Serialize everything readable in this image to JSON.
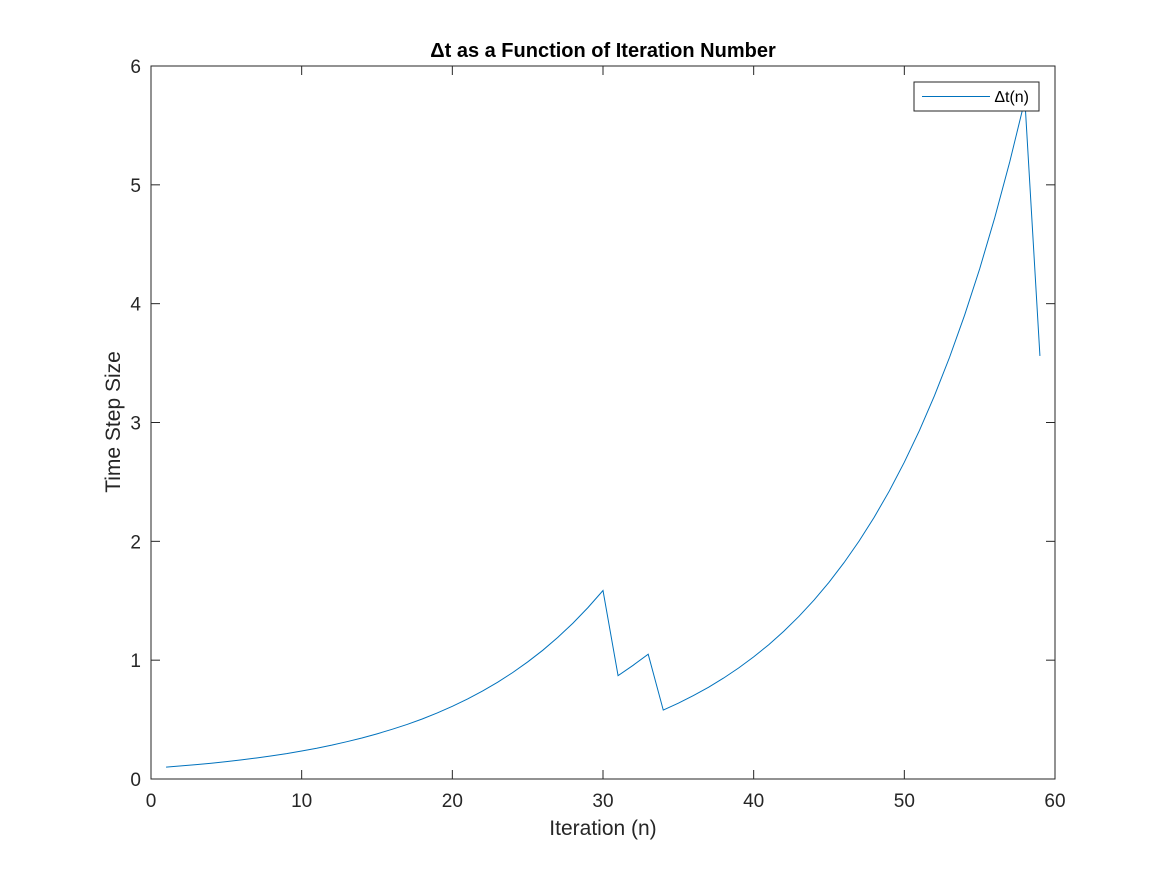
{
  "chart_data": {
    "type": "line",
    "title": "Δt as a Function of Iteration Number",
    "xlabel": "Iteration (n)",
    "ylabel": "Time Step Size",
    "xlim": [
      0,
      60
    ],
    "ylim": [
      0,
      6
    ],
    "xticks": [
      0,
      10,
      20,
      30,
      40,
      50,
      60
    ],
    "yticks": [
      0,
      1,
      2,
      3,
      4,
      5,
      6
    ],
    "grid": false,
    "legend": {
      "location": "top-right",
      "entries": [
        "Δt(n)"
      ]
    },
    "series": [
      {
        "name": "Δt(n)",
        "color": "#0072BD",
        "x": [
          1,
          2,
          3,
          4,
          5,
          6,
          7,
          8,
          9,
          10,
          11,
          12,
          13,
          14,
          15,
          16,
          17,
          18,
          19,
          20,
          21,
          22,
          23,
          24,
          25,
          26,
          27,
          28,
          29,
          30,
          31,
          32,
          33,
          34,
          35,
          36,
          37,
          38,
          39,
          40,
          41,
          42,
          43,
          44,
          45,
          46,
          47,
          48,
          49,
          50,
          51,
          52,
          53,
          54,
          55,
          56,
          57,
          58,
          59
        ],
        "y": [
          0.1,
          0.11,
          0.121,
          0.133,
          0.146,
          0.161,
          0.177,
          0.195,
          0.214,
          0.236,
          0.259,
          0.285,
          0.314,
          0.345,
          0.38,
          0.418,
          0.459,
          0.505,
          0.556,
          0.612,
          0.673,
          0.74,
          0.814,
          0.895,
          0.985,
          1.083,
          1.192,
          1.311,
          1.442,
          1.586,
          0.87,
          0.957,
          1.05,
          0.58,
          0.638,
          0.702,
          0.772,
          0.849,
          0.934,
          1.028,
          1.13,
          1.243,
          1.368,
          1.505,
          1.655,
          1.821,
          2.003,
          2.203,
          2.423,
          2.666,
          2.932,
          3.226,
          3.548,
          3.903,
          4.293,
          4.723,
          5.195,
          5.714,
          3.56
        ]
      }
    ]
  }
}
